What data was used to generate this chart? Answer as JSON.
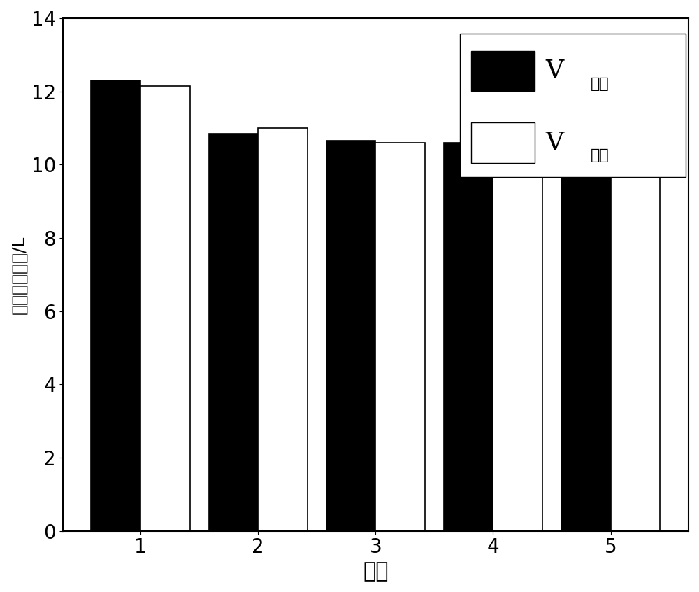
{
  "categories": [
    1,
    2,
    3,
    4,
    5
  ],
  "v_absorb": [
    12.3,
    10.85,
    10.65,
    10.6,
    10.55
  ],
  "v_desorb": [
    12.15,
    11.0,
    10.6,
    10.6,
    10.5
  ],
  "bar_width": 0.42,
  "bar_color_absorb": "#000000",
  "bar_color_desorb": "#ffffff",
  "bar_edgecolor": "#000000",
  "xlabel": "次数",
  "ylabel": "二氧化碳体积/L",
  "ylim": [
    0,
    14
  ],
  "yticks": [
    0,
    2,
    4,
    6,
    8,
    10,
    12,
    14
  ],
  "xlabel_fontsize": 22,
  "ylabel_fontsize": 18,
  "tick_fontsize": 20,
  "legend_v_fontsize": 28,
  "legend_sub_fontsize": 18,
  "background_color": "#ffffff"
}
